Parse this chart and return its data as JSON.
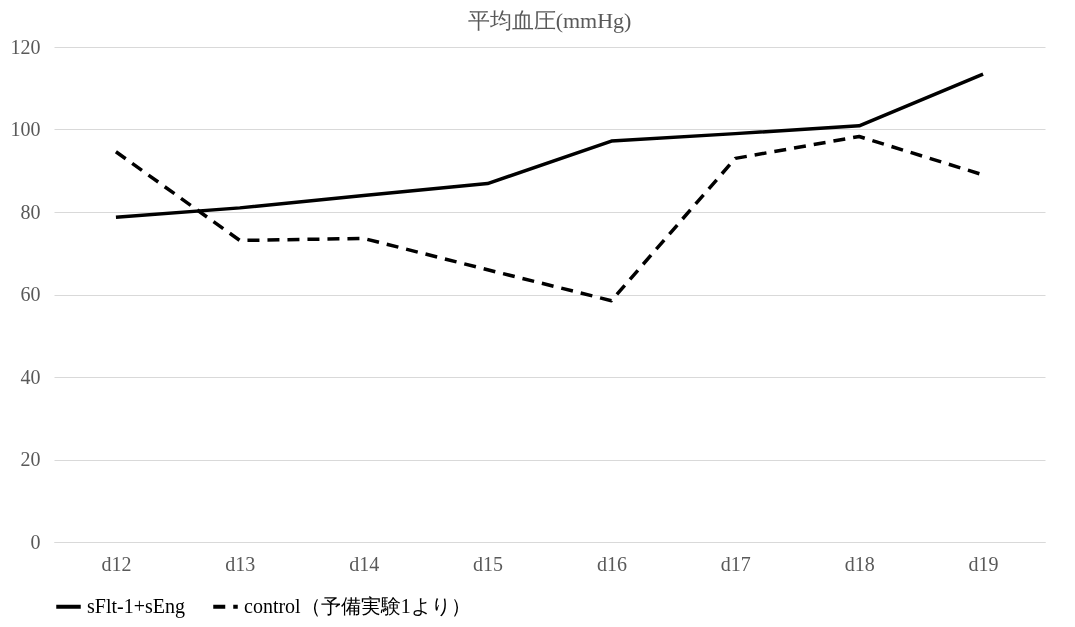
{
  "chart_data": {
    "type": "line",
    "title": "平均血圧(mmHg)",
    "categories": [
      "d12",
      "d13",
      "d14",
      "d15",
      "d16",
      "d17",
      "d18",
      "d19"
    ],
    "series": [
      {
        "name": "sFlt-1+sEng",
        "color": "#000000",
        "line_style": "solid",
        "values": [
          78.7,
          81,
          84,
          86.9,
          97.2,
          99,
          100.9,
          113.4
        ]
      },
      {
        "name": "control（予備実験1より）",
        "color": "#000000",
        "line_style": "dashed",
        "values": [
          94.6,
          73.1,
          73.6,
          66,
          58.5,
          93,
          98.3,
          89
        ]
      }
    ],
    "ylim": [
      0,
      120
    ],
    "yticks": [
      0,
      20,
      40,
      60,
      80,
      100,
      120
    ],
    "grid": "y",
    "legend": "bottom",
    "marker": "none"
  }
}
